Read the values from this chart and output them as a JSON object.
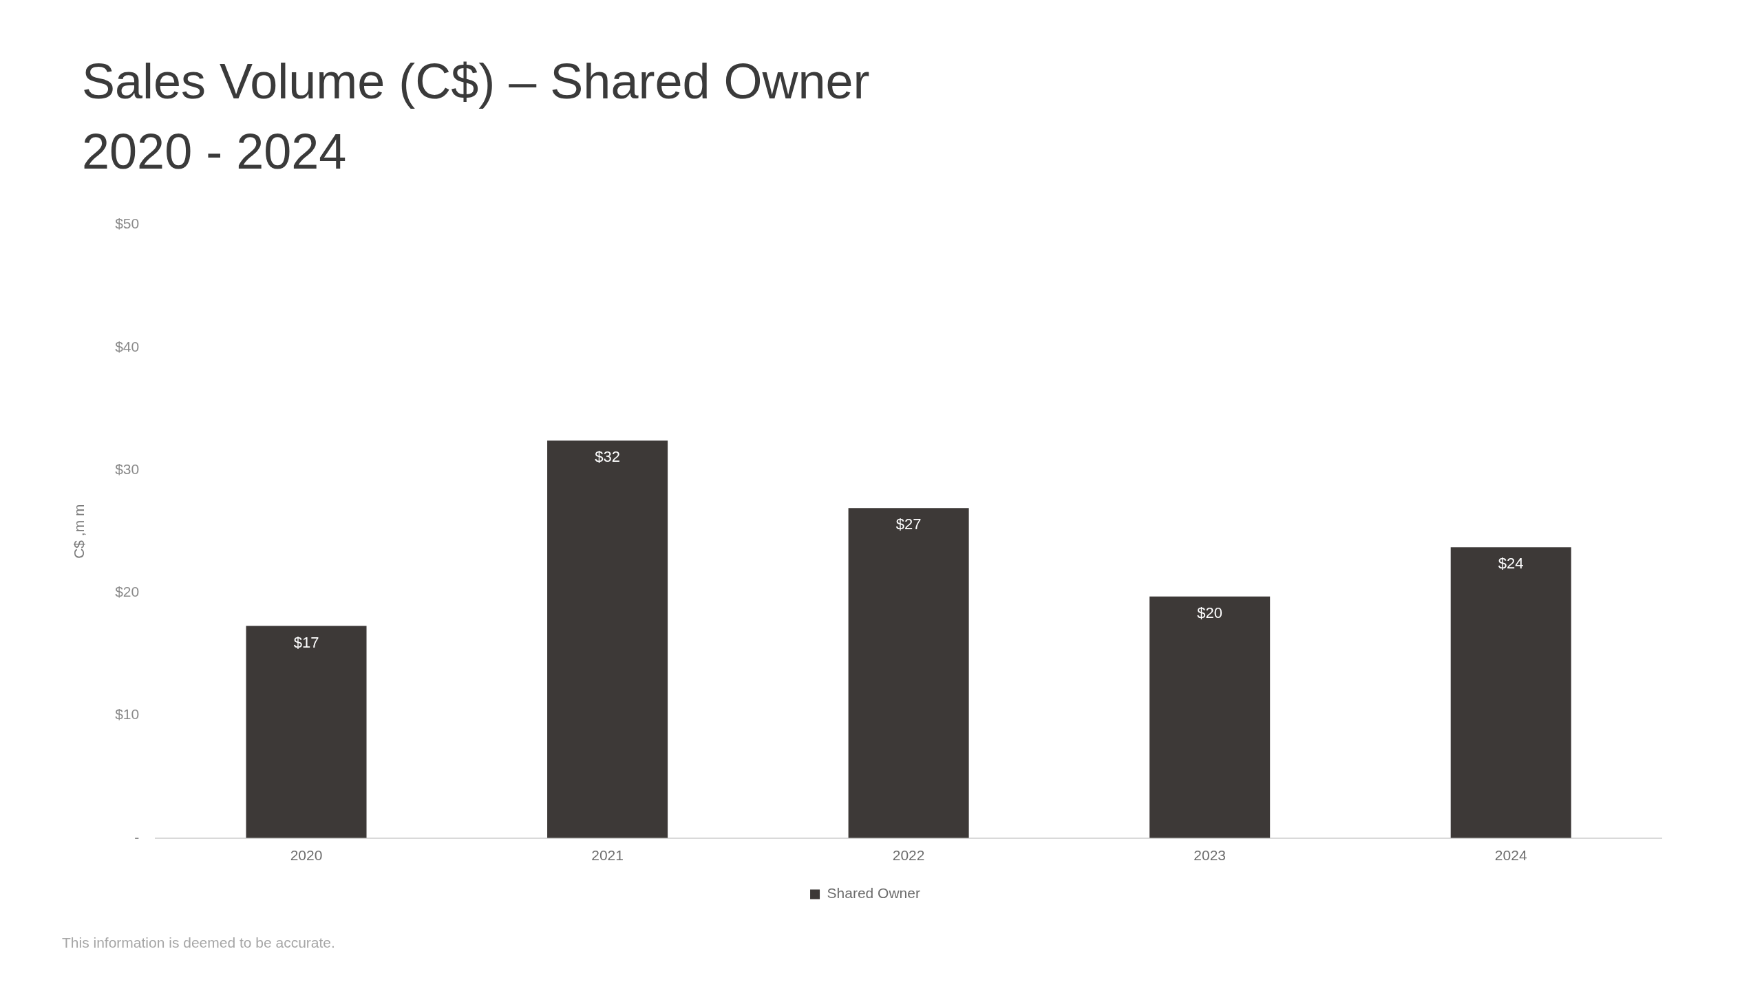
{
  "chart_data": {
    "type": "bar",
    "title": "Sales Volume (C$) – Shared Owner",
    "subtitle": "2020 - 2024",
    "ylabel": "C$ ,m m",
    "categories": [
      "2020",
      "2021",
      "2022",
      "2023",
      "2024"
    ],
    "series": [
      {
        "name": "Shared Owner",
        "color": "#3d3937",
        "values": [
          17.3,
          32.4,
          26.9,
          19.7,
          23.7
        ],
        "value_labels": [
          "$17",
          "$32",
          "$27",
          "$20",
          "$24"
        ]
      }
    ],
    "ylim": [
      0,
      50
    ],
    "yticks": [
      {
        "value": 0,
        "label": "-"
      },
      {
        "value": 10,
        "label": "$10"
      },
      {
        "value": 20,
        "label": "$20"
      },
      {
        "value": 30,
        "label": "$30"
      },
      {
        "value": 40,
        "label": "$40"
      },
      {
        "value": 50,
        "label": "$50"
      }
    ],
    "legend": "bottom",
    "annotations": [
      "This information is deemed to be accurate."
    ]
  }
}
